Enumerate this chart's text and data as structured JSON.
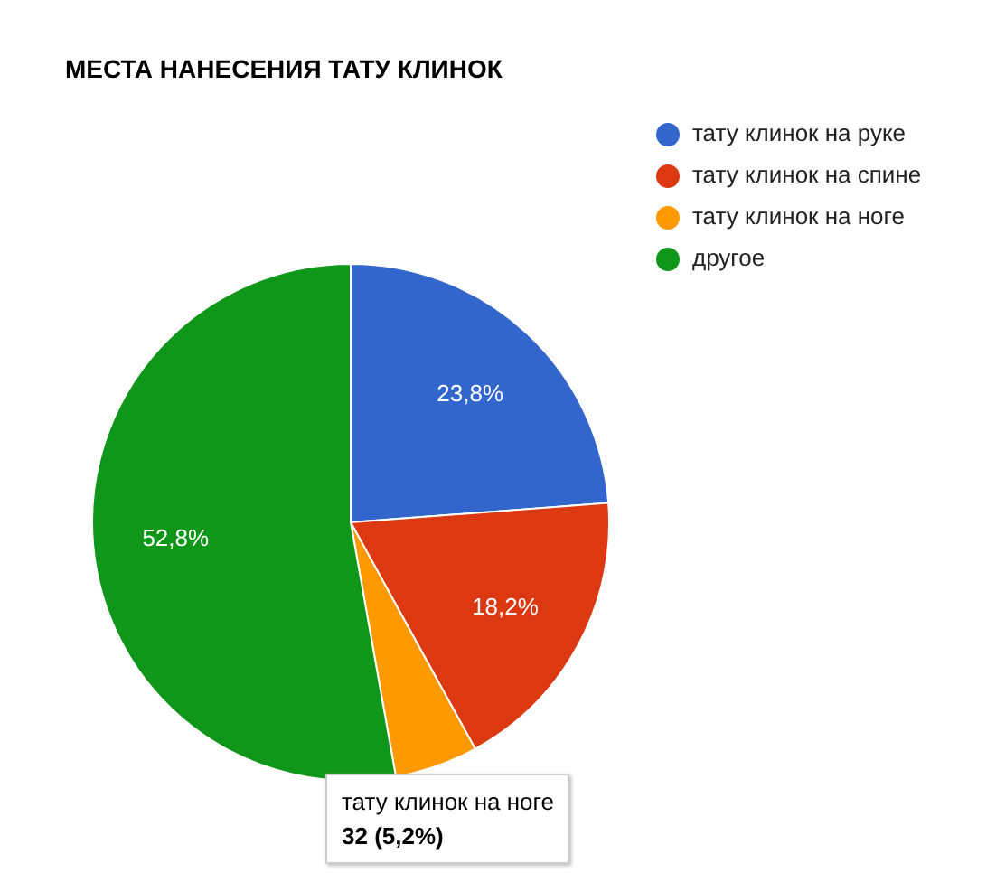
{
  "chart_data": {
    "type": "pie",
    "title": "МЕСТА НАНЕСЕНИЯ ТАТУ КЛИНОК",
    "categories": [
      "тату клинок на руке",
      "тату клинок на спине",
      "тату клинок на ноге",
      "другое"
    ],
    "values": [
      23.8,
      18.2,
      5.2,
      52.8
    ],
    "colors": [
      "#3366cc",
      "#dc3912",
      "#ff9900",
      "#109618"
    ],
    "value_labels": [
      "23,8%",
      "18,2%",
      null,
      "52,8%"
    ],
    "legend": "right",
    "annotations": [
      "тату клинок на ноге",
      "32 (5,2%)"
    ]
  }
}
